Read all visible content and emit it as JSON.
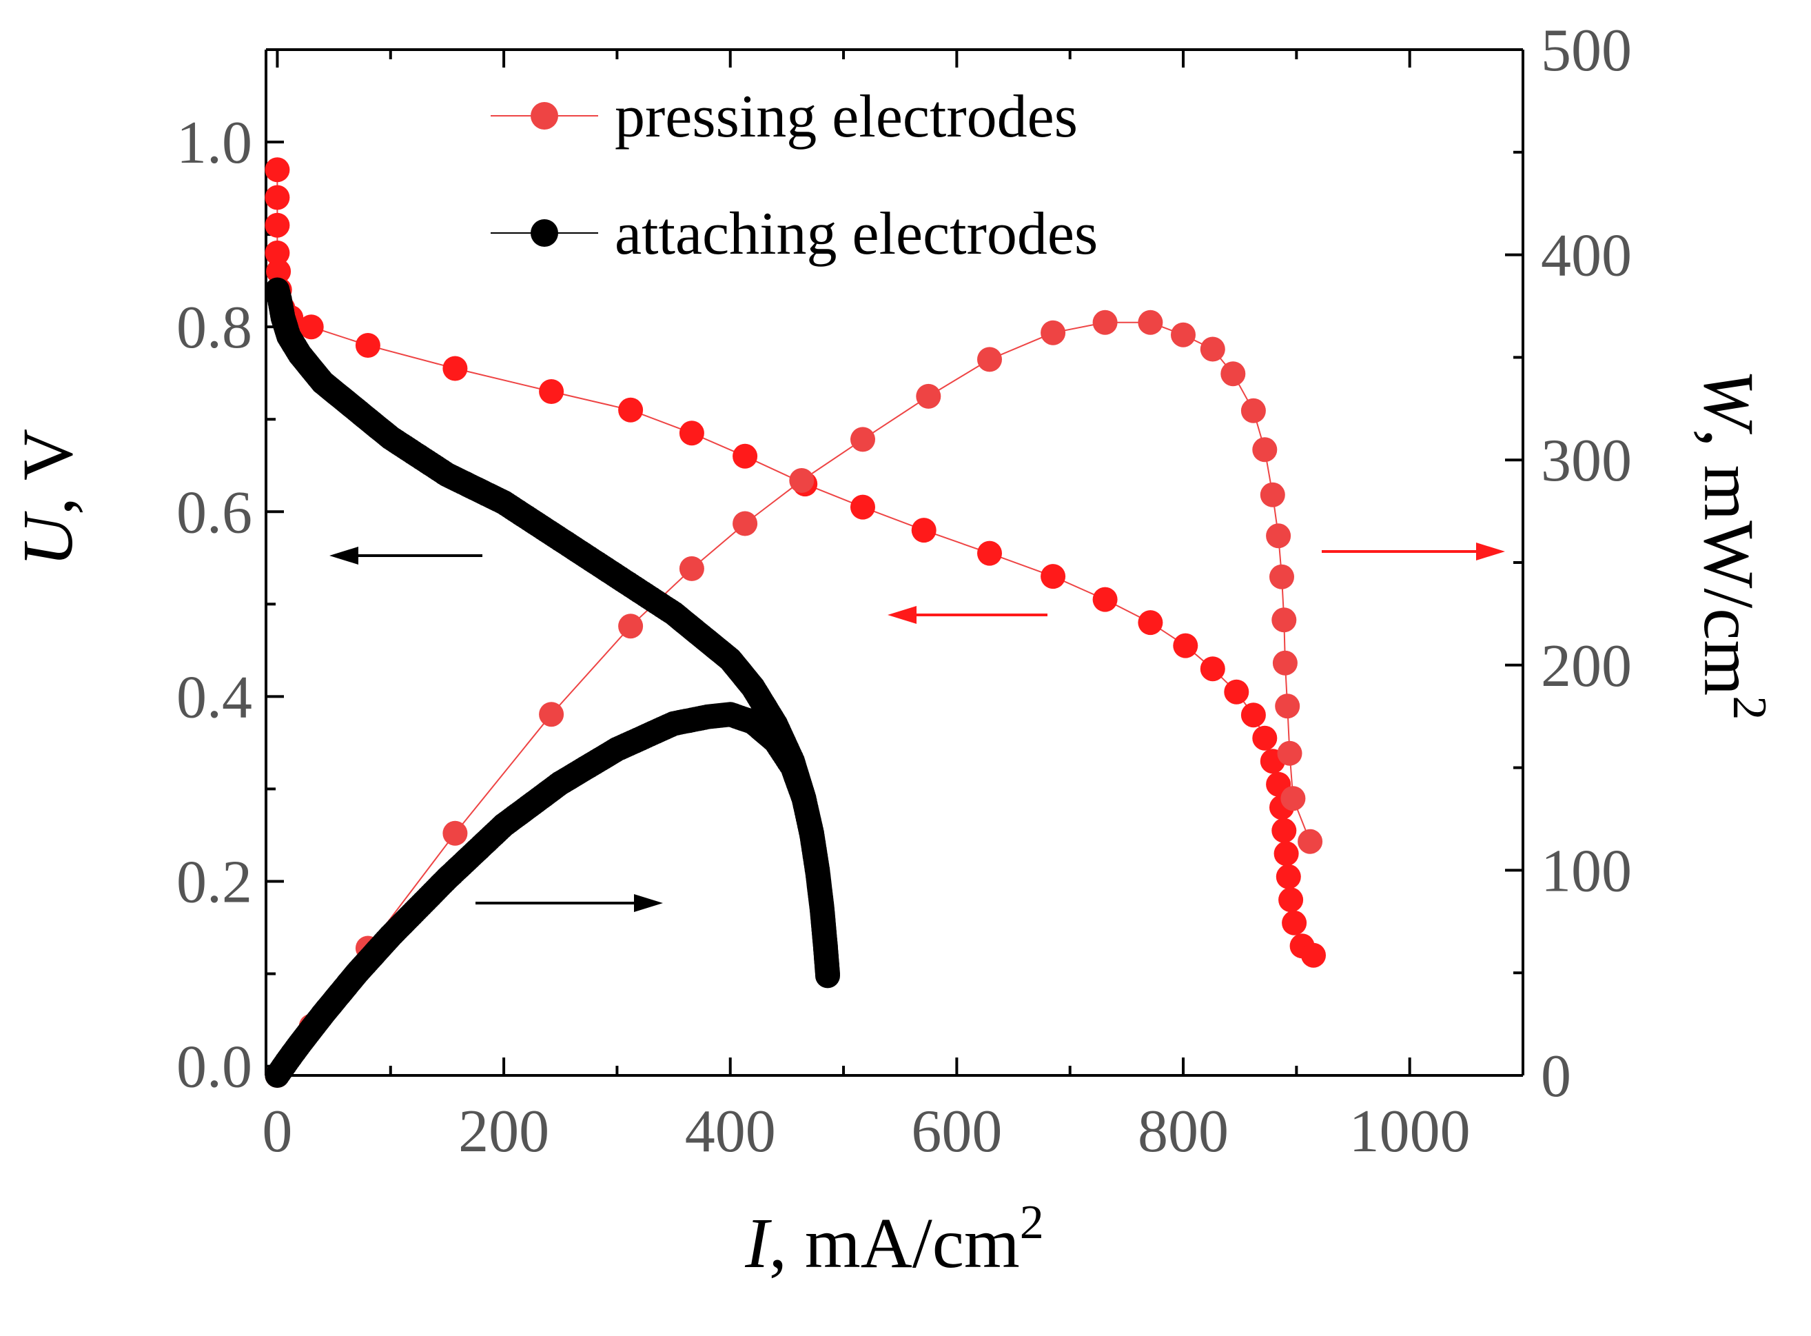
{
  "chart_data": {
    "type": "scatter",
    "title": "",
    "xlabel": {
      "var": "I",
      "unit": ", mA/cm",
      "sup": "2"
    },
    "ylabel": {
      "var": "U",
      "unit": ", V"
    },
    "y2label": {
      "var": "W",
      "unit": ", mW/cm",
      "sup": "2"
    },
    "xlim": [
      -10,
      1100
    ],
    "ylim": [
      -0.01,
      1.1
    ],
    "y2lim": [
      0,
      500
    ],
    "xticks": [
      "0",
      "200",
      "400",
      "600",
      "800",
      "1000"
    ],
    "xtick_values": [
      0,
      200,
      400,
      600,
      800,
      1000
    ],
    "yticks": [
      "0.0",
      "0.2",
      "0.4",
      "0.6",
      "0.8",
      "1.0"
    ],
    "ytick_values": [
      0,
      0.2,
      0.4,
      0.6,
      0.8,
      1.0
    ],
    "y2ticks": [
      "0",
      "100",
      "200",
      "300",
      "400",
      "500"
    ],
    "y2tick_values": [
      0,
      100,
      200,
      300,
      400,
      500
    ],
    "legend": {
      "position": "top-center",
      "entries": [
        "pressing electrodes",
        "attaching electrodes"
      ]
    },
    "colors": {
      "pressing": "#ff1a1a",
      "pressing_power": "#ee4444",
      "attaching": "#000000"
    },
    "series": [
      {
        "name": "pressing electrodes",
        "quantity": "U",
        "axis": "left",
        "points": [
          [
            0,
            0.97
          ],
          [
            0,
            0.94
          ],
          [
            0,
            0.91
          ],
          [
            0,
            0.88
          ],
          [
            1,
            0.86
          ],
          [
            2,
            0.84
          ],
          [
            5,
            0.82
          ],
          [
            12,
            0.81
          ],
          [
            30,
            0.8
          ],
          [
            80,
            0.78
          ],
          [
            157,
            0.755
          ],
          [
            242,
            0.73
          ],
          [
            312,
            0.71
          ],
          [
            366,
            0.685
          ],
          [
            413,
            0.66
          ],
          [
            466,
            0.63
          ],
          [
            517,
            0.605
          ],
          [
            571,
            0.58
          ],
          [
            629,
            0.555
          ],
          [
            685,
            0.53
          ],
          [
            731,
            0.505
          ],
          [
            771,
            0.48
          ],
          [
            802,
            0.455
          ],
          [
            826,
            0.43
          ],
          [
            847,
            0.405
          ],
          [
            862,
            0.38
          ],
          [
            872,
            0.355
          ],
          [
            879,
            0.33
          ],
          [
            884,
            0.305
          ],
          [
            887,
            0.28
          ],
          [
            889,
            0.255
          ],
          [
            891,
            0.23
          ],
          [
            893,
            0.205
          ],
          [
            895,
            0.18
          ],
          [
            898,
            0.155
          ],
          [
            905,
            0.13
          ],
          [
            915,
            0.12
          ]
        ]
      },
      {
        "name": "pressing electrodes",
        "quantity": "W",
        "axis": "right",
        "points": [
          [
            0,
            0
          ],
          [
            30,
            24
          ],
          [
            80,
            62
          ],
          [
            157,
            118
          ],
          [
            242,
            176
          ],
          [
            312,
            219
          ],
          [
            366,
            247
          ],
          [
            413,
            269
          ],
          [
            463,
            290
          ],
          [
            517,
            310
          ],
          [
            575,
            331
          ],
          [
            629,
            349
          ],
          [
            685,
            362
          ],
          [
            731,
            367
          ],
          [
            771,
            367
          ],
          [
            800,
            361
          ],
          [
            826,
            354
          ],
          [
            844,
            342
          ],
          [
            862,
            324
          ],
          [
            872,
            305
          ],
          [
            879,
            283
          ],
          [
            884,
            263
          ],
          [
            887,
            243
          ],
          [
            889,
            222
          ],
          [
            890,
            201
          ],
          [
            892,
            180
          ],
          [
            894,
            157
          ],
          [
            897,
            135
          ],
          [
            912,
            114
          ]
        ]
      },
      {
        "name": "attaching electrodes",
        "quantity": "U",
        "axis": "left",
        "points": [
          [
            0,
            0.84
          ],
          [
            2,
            0.83
          ],
          [
            5,
            0.81
          ],
          [
            10,
            0.79
          ],
          [
            20,
            0.77
          ],
          [
            40,
            0.74
          ],
          [
            70,
            0.71
          ],
          [
            100,
            0.68
          ],
          [
            150,
            0.64
          ],
          [
            200,
            0.61
          ],
          [
            250,
            0.57
          ],
          [
            300,
            0.53
          ],
          [
            350,
            0.49
          ],
          [
            380,
            0.46
          ],
          [
            400,
            0.44
          ],
          [
            420,
            0.41
          ],
          [
            440,
            0.37
          ],
          [
            455,
            0.33
          ],
          [
            465,
            0.29
          ],
          [
            472,
            0.25
          ],
          [
            477,
            0.21
          ],
          [
            481,
            0.17
          ],
          [
            484,
            0.13
          ],
          [
            486,
            0.1
          ]
        ]
      },
      {
        "name": "attaching electrodes",
        "quantity": "W",
        "axis": "right",
        "points": [
          [
            0,
            0
          ],
          [
            10,
            7.9
          ],
          [
            20,
            15.4
          ],
          [
            40,
            29.6
          ],
          [
            70,
            49.7
          ],
          [
            100,
            68
          ],
          [
            150,
            96
          ],
          [
            200,
            122
          ],
          [
            250,
            142.5
          ],
          [
            300,
            159
          ],
          [
            350,
            171.5
          ],
          [
            380,
            174.8
          ],
          [
            400,
            176
          ],
          [
            420,
            172.2
          ],
          [
            440,
            162.8
          ],
          [
            455,
            150.2
          ],
          [
            465,
            134.9
          ],
          [
            472,
            118
          ],
          [
            477,
            100.2
          ],
          [
            481,
            81.8
          ],
          [
            484,
            62.9
          ],
          [
            486,
            48.6
          ]
        ]
      }
    ]
  }
}
